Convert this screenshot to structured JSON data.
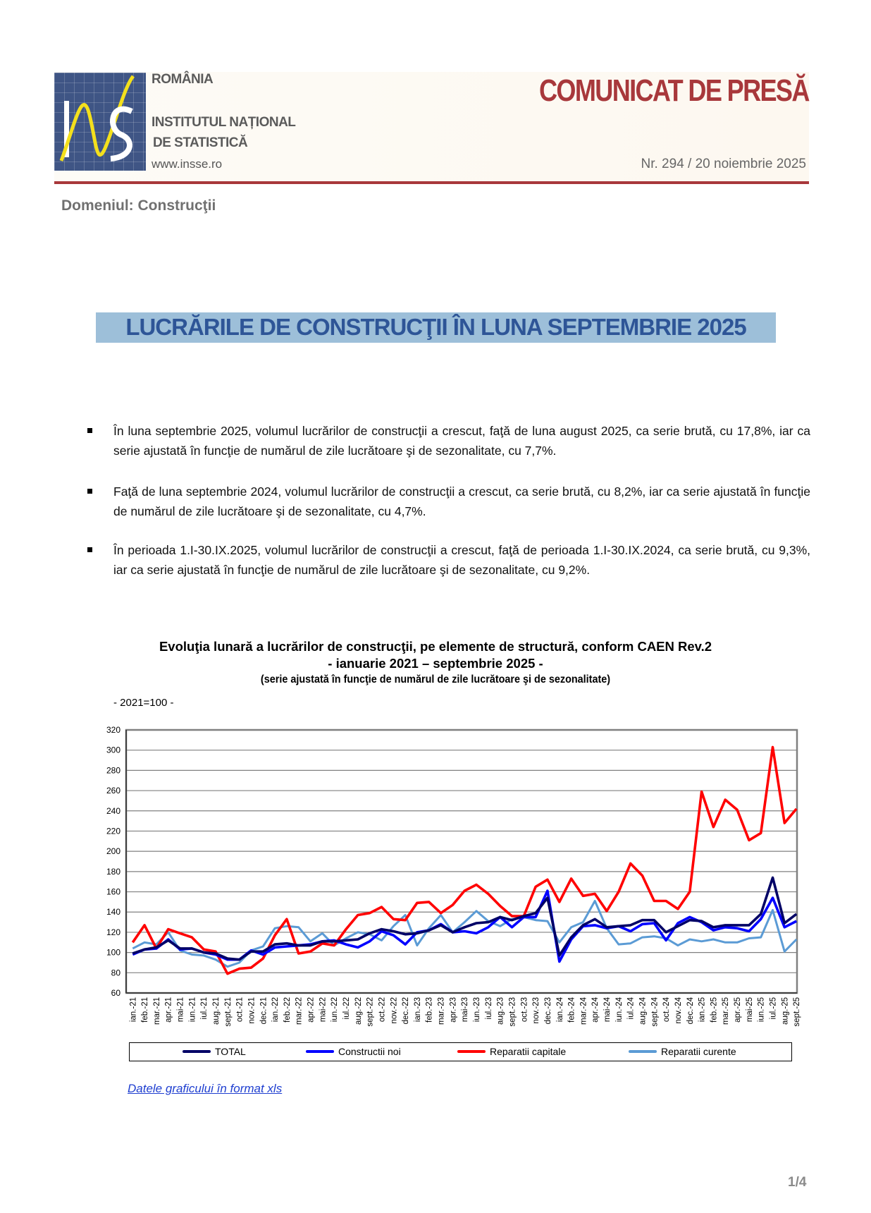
{
  "header": {
    "country": "ROMÂNIA",
    "institute_line1": "INSTITUTUL NAȚIONAL",
    "institute_line2": "DE STATISTICĂ",
    "website": "www.insse.ro",
    "logo_text": "INS",
    "doc_type": "COMUNICAT DE PRESĂ",
    "number_date": "Nr. 294 / 20 noiembrie 2025",
    "accent_color": "#a8383b"
  },
  "domain": "Domeniul: Construcţii",
  "title": "LUCRĂRILE DE CONSTRUCŢII ÎN LUNA SEPTEMBRIE 2025",
  "bullets": [
    "În luna septembrie 2025, volumul lucrărilor de construcţii a crescut, faţă de luna august 2025, ca serie brută, cu 17,8%, iar ca serie ajustată în funcţie de numărul de zile lucrătoare şi de sezonalitate, cu 7,7%.",
    "Faţă de luna septembrie 2024, volumul lucrărilor de construcţii a crescut, ca serie brută, cu 8,2%, iar ca serie ajustată în funcţie de numărul de zile lucrătoare şi de sezonalitate, cu 4,7%.",
    "În perioada 1.I-30.IX.2025, volumul lucrărilor de construcţii a crescut, faţă de perioada 1.I-30.IX.2024, ca serie brută, cu 9,3%, iar ca serie ajustată în funcţie de numărul de zile lucrătoare şi de sezonalitate, cu 9,2%."
  ],
  "chart_data": {
    "type": "line",
    "title": "Evoluţia lunară a lucrărilor de construcţii, pe elemente de structură, conform CAEN Rev.2",
    "subtitle": "- ianuarie 2021 – septembrie 2025 -",
    "note": "(serie ajustată în funcţie de numărul de zile lucrătoare şi de sezonalitate)",
    "base": "- 2021=100 -",
    "ylim": [
      60,
      320
    ],
    "yticks": [
      60,
      80,
      100,
      120,
      140,
      160,
      180,
      200,
      220,
      240,
      260,
      280,
      300,
      320
    ],
    "grid": true,
    "legend_position": "bottom",
    "categories": [
      "ian.-21",
      "feb.-21",
      "mar.-21",
      "apr.-21",
      "mai-21",
      "iun.-21",
      "iul.-21",
      "aug.-21",
      "sept.-21",
      "oct.-21",
      "nov.-21",
      "dec.-21",
      "ian.-22",
      "feb.-22",
      "mar.-22",
      "apr.-22",
      "mai-22",
      "iun.-22",
      "iul.-22",
      "aug.-22",
      "sept.-22",
      "oct.-22",
      "nov.-22",
      "dec.-22",
      "ian.-23",
      "feb.-23",
      "mar.-23",
      "apr.-23",
      "mai-23",
      "iun.-23",
      "iul.-23",
      "aug.-23",
      "sept.-23",
      "oct.-23",
      "nov.-23",
      "dec.-23",
      "ian.-24",
      "feb.-24",
      "mar.-24",
      "apr.-24",
      "mai-24",
      "iun.-24",
      "iul.-24",
      "aug.-24",
      "sept.-24",
      "oct.-24",
      "nov.-24",
      "dec.-24",
      "ian.-25",
      "feb.-25",
      "mar.-25",
      "apr.-25",
      "mai-25",
      "iun.-25",
      "iul.-25",
      "aug.-25",
      "sept.-25"
    ],
    "series": [
      {
        "name": "TOTAL",
        "color": "#000066",
        "values": [
          99,
          103,
          105,
          112,
          104,
          104,
          100,
          99,
          94,
          93,
          101,
          101,
          108,
          109,
          107,
          107,
          111,
          111,
          112,
          113,
          119,
          123,
          121,
          118,
          119,
          122,
          127,
          120,
          125,
          129,
          130,
          135,
          132,
          136,
          139,
          154,
          97,
          115,
          127,
          133,
          125,
          126,
          127,
          132,
          132,
          120,
          126,
          132,
          131,
          125,
          127,
          127,
          127,
          138,
          174,
          129,
          138
        ]
      },
      {
        "name": "Constructii noi",
        "color": "#0000ff",
        "values": [
          98,
          103,
          104,
          113,
          103,
          104,
          100,
          98,
          93,
          93,
          102,
          98,
          105,
          106,
          107,
          108,
          111,
          112,
          108,
          105,
          111,
          121,
          117,
          108,
          120,
          122,
          128,
          120,
          121,
          119,
          125,
          135,
          125,
          135,
          135,
          161,
          91,
          113,
          126,
          127,
          124,
          126,
          121,
          128,
          129,
          112,
          129,
          135,
          130,
          122,
          125,
          124,
          121,
          133,
          154,
          125,
          131
        ]
      },
      {
        "name": "Reparatii capitale",
        "color": "#ff0000",
        "values": [
          110,
          127,
          104,
          123,
          119,
          115,
          103,
          101,
          79,
          84,
          85,
          94,
          117,
          133,
          99,
          101,
          109,
          107,
          123,
          137,
          139,
          145,
          133,
          132,
          149,
          150,
          139,
          147,
          161,
          167,
          158,
          146,
          136,
          136,
          165,
          172,
          150,
          173,
          156,
          158,
          141,
          160,
          188,
          176,
          151,
          151,
          143,
          160,
          259,
          224,
          251,
          241,
          211,
          218,
          303,
          228,
          242
        ]
      },
      {
        "name": "Reparatii curente",
        "color": "#5b9bd5",
        "values": [
          104,
          110,
          108,
          120,
          102,
          98,
          97,
          93,
          86,
          90,
          102,
          106,
          124,
          126,
          125,
          111,
          119,
          107,
          114,
          120,
          118,
          112,
          126,
          137,
          107,
          124,
          137,
          120,
          130,
          141,
          131,
          126,
          133,
          135,
          132,
          131,
          110,
          125,
          130,
          151,
          124,
          108,
          109,
          115,
          116,
          114,
          107,
          113,
          111,
          113,
          110,
          110,
          114,
          115,
          142,
          101,
          113
        ]
      }
    ]
  },
  "link": "Datele graficului în format xls",
  "page": "1/4"
}
